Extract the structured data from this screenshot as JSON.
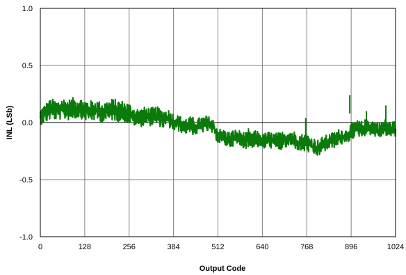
{
  "chart_data": {
    "type": "line",
    "title": "",
    "xlabel": "Output Code",
    "ylabel": "INL (LSb)",
    "xlim": [
      0,
      1024
    ],
    "ylim": [
      -1.0,
      1.0
    ],
    "xticks": [
      0,
      128,
      256,
      384,
      512,
      640,
      768,
      896,
      1024
    ],
    "xtick_labels": [
      "0",
      "128",
      "256",
      "384",
      "512",
      "640",
      "768",
      "896",
      "1024"
    ],
    "yticks": [
      1.0,
      0.5,
      0.0,
      -0.5,
      -1.0
    ],
    "ytick_labels": [
      "1.0",
      "0.5",
      "0.0",
      "-0.5",
      "-1.0"
    ],
    "grid": true,
    "colors": {
      "series": "#0a7a0a",
      "grid": "#808080",
      "axis": "#000000"
    },
    "series": [
      {
        "x": [
          0,
          16,
          32,
          48,
          64,
          80,
          96,
          112,
          128,
          144,
          160,
          176,
          192,
          208,
          224,
          240,
          256,
          272,
          288,
          304,
          320,
          336,
          352,
          368,
          384,
          400,
          416,
          432,
          448,
          464,
          480,
          496,
          512,
          528,
          544,
          560,
          576,
          592,
          608,
          624,
          640,
          656,
          672,
          688,
          704,
          720,
          736,
          752,
          768,
          784,
          800,
          816,
          832,
          848,
          864,
          880,
          896,
          912,
          928,
          944,
          960,
          976,
          992,
          1008,
          1024
        ],
        "y": [
          0.05,
          0.09,
          0.12,
          0.1,
          0.12,
          0.11,
          0.12,
          0.13,
          0.11,
          0.1,
          0.11,
          0.09,
          0.1,
          0.11,
          0.1,
          0.1,
          0.08,
          0.05,
          0.04,
          0.06,
          0.05,
          0.06,
          0.03,
          0.04,
          0.0,
          -0.01,
          -0.03,
          -0.02,
          -0.04,
          -0.02,
          -0.01,
          -0.03,
          -0.12,
          -0.13,
          -0.15,
          -0.13,
          -0.14,
          -0.16,
          -0.15,
          -0.14,
          -0.17,
          -0.15,
          -0.16,
          -0.17,
          -0.15,
          -0.14,
          -0.16,
          -0.18,
          -0.17,
          -0.21,
          -0.23,
          -0.19,
          -0.17,
          -0.15,
          -0.12,
          -0.13,
          -0.08,
          -0.05,
          -0.06,
          -0.03,
          -0.05,
          -0.07,
          -0.04,
          -0.06,
          -0.06
        ],
        "y_min": [
          -0.02,
          0.0,
          0.03,
          0.02,
          0.03,
          0.02,
          0.03,
          0.04,
          0.02,
          0.01,
          0.02,
          0.0,
          0.01,
          0.02,
          0.01,
          0.01,
          -0.01,
          -0.03,
          -0.04,
          -0.02,
          -0.03,
          -0.02,
          -0.05,
          -0.04,
          -0.08,
          -0.08,
          -0.1,
          -0.09,
          -0.11,
          -0.09,
          -0.08,
          -0.1,
          -0.18,
          -0.2,
          -0.22,
          -0.2,
          -0.21,
          -0.23,
          -0.22,
          -0.21,
          -0.24,
          -0.22,
          -0.23,
          -0.25,
          -0.23,
          -0.21,
          -0.23,
          -0.26,
          -0.26,
          -0.28,
          -0.3,
          -0.26,
          -0.24,
          -0.22,
          -0.19,
          -0.2,
          -0.15,
          -0.12,
          -0.13,
          -0.1,
          -0.12,
          -0.14,
          -0.11,
          -0.13,
          -0.13
        ],
        "y_max": [
          0.12,
          0.17,
          0.21,
          0.19,
          0.22,
          0.2,
          0.22,
          0.22,
          0.2,
          0.19,
          0.2,
          0.18,
          0.19,
          0.21,
          0.2,
          0.19,
          0.17,
          0.13,
          0.12,
          0.14,
          0.13,
          0.14,
          0.11,
          0.12,
          0.08,
          0.06,
          0.04,
          0.05,
          0.03,
          0.05,
          0.06,
          0.04,
          -0.05,
          -0.06,
          -0.08,
          -0.06,
          -0.07,
          -0.09,
          -0.08,
          -0.07,
          -0.1,
          -0.08,
          -0.09,
          -0.09,
          -0.07,
          -0.06,
          -0.08,
          -0.1,
          -0.09,
          -0.13,
          -0.15,
          -0.12,
          -0.1,
          -0.08,
          -0.05,
          -0.06,
          -0.01,
          0.02,
          0.01,
          0.04,
          0.02,
          0.0,
          0.03,
          0.01,
          0.01
        ]
      }
    ]
  }
}
